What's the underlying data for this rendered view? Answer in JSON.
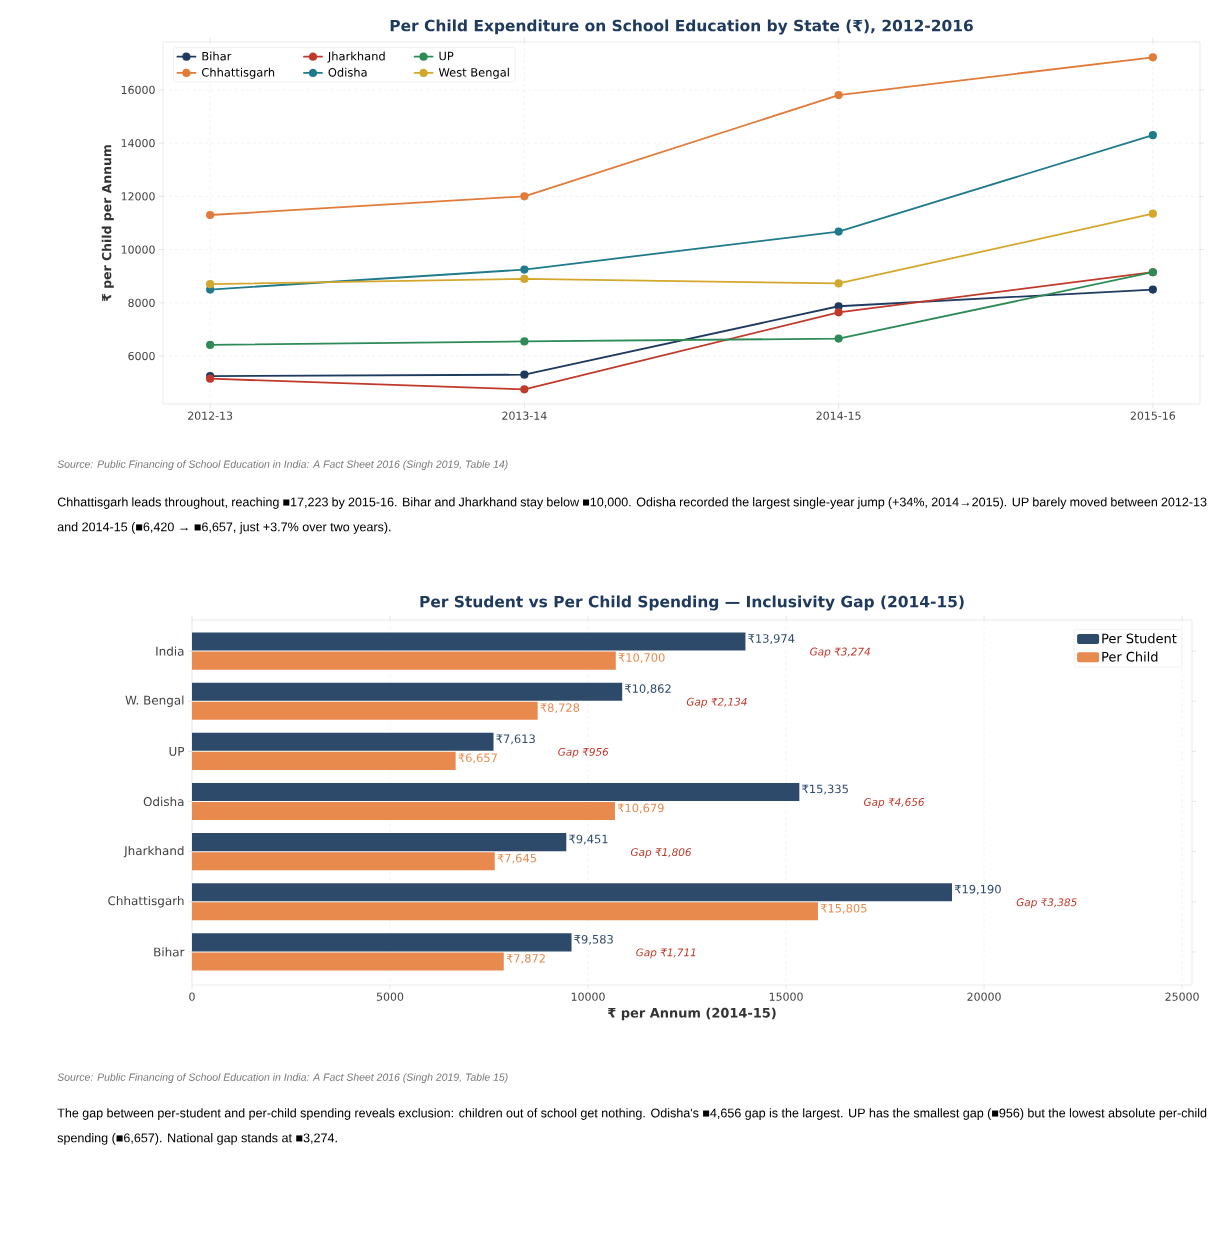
{
  "chart_data": [
    {
      "type": "line",
      "title": "Per Child Expenditure on School Education by State (₹), 2012-2016",
      "ylabel": "₹ per Child per Annum",
      "categories": [
        "2012-13",
        "2013-14",
        "2014-15",
        "2015-16"
      ],
      "series": [
        {
          "name": "Bihar",
          "color": "#1f3a5f",
          "values": [
            5250,
            5300,
            7872,
            8500
          ]
        },
        {
          "name": "Jharkhand",
          "color": "#c0392b",
          "values": [
            5150,
            4750,
            7645,
            9150
          ]
        },
        {
          "name": "UP",
          "color": "#2e8b57",
          "values": [
            6420,
            6550,
            6657,
            9150
          ]
        },
        {
          "name": "Chhattisgarh",
          "color": "#e07b39",
          "values": [
            11300,
            12000,
            15805,
            17223
          ]
        },
        {
          "name": "Odisha",
          "color": "#1f7a8c",
          "values": [
            8500,
            9250,
            10679,
            14300
          ]
        },
        {
          "name": "West Bengal",
          "color": "#d4a72c",
          "values": [
            8700,
            8900,
            8728,
            11350
          ]
        }
      ],
      "ylim": [
        4200,
        17800
      ],
      "yticks": [
        6000,
        8000,
        10000,
        12000,
        14000,
        16000
      ],
      "grid": true,
      "legend": "top left",
      "marker": "circle",
      "line_style": "solid",
      "annotations": [
        "Source: Public Financing of School Education in India: A Fact Sheet 2016 (Singh 2019, Table 14)",
        "Chhattisgarh leads throughout, reaching ■17,223 by 2015-16. Bihar and Jharkhand stay below ■10,000. Odisha recorded the largest single-year jump (+34%, 2014→2015). UP barely moved between 2012-13 and 2014-15 (■6,420 → ■6,657, just +3.7% over two years)."
      ]
    },
    {
      "type": "bar",
      "orientation": "horizontal",
      "title": "Per Student vs Per Child Spending — Inclusivity Gap (2014-15)",
      "xlabel": "₹ per Annum (2014-15)",
      "categories": [
        "India",
        "W. Bengal",
        "UP",
        "Odisha",
        "Jharkhand",
        "Chhattisgarh",
        "Bihar"
      ],
      "series": [
        {
          "name": "Per Student",
          "color": "#2e4a6b",
          "values": [
            13974,
            10862,
            7613,
            15335,
            9451,
            19190,
            9583
          ],
          "value_labels": [
            "₹13,974",
            "₹10,862",
            "₹7,613",
            "₹15,335",
            "₹9,451",
            "₹19,190",
            "₹9,583"
          ]
        },
        {
          "name": "Per Child",
          "color": "#e8894e",
          "values": [
            10700,
            8728,
            6657,
            10679,
            7645,
            15805,
            7872
          ],
          "value_labels": [
            "₹10,700",
            "₹8,728",
            "₹6,657",
            "₹10,679",
            "₹7,645",
            "₹15,805",
            "₹7,872"
          ]
        }
      ],
      "xlim": [
        0,
        25250
      ],
      "xticks": [
        0,
        5000,
        10000,
        15000,
        20000,
        25000
      ],
      "grid": "x",
      "legend": "top right",
      "annotations": [
        "Gap ₹3,274",
        "Gap ₹2,134",
        "Gap ₹956",
        "Gap ₹4,656",
        "Gap ₹1,806",
        "Gap ₹3,385",
        "Gap ₹1,711",
        "Source: Public Financing of School Education in India: A Fact Sheet 2016 (Singh 2019, Table 15)",
        "The gap between per-student and per-child spending reveals exclusion: children out of school get nothing. Odisha's ■4,656 gap is the largest. UP has the smallest gap (■956) but the lowest absolute per-child spending (■6,657). National gap stands at ■3,274."
      ]
    }
  ]
}
